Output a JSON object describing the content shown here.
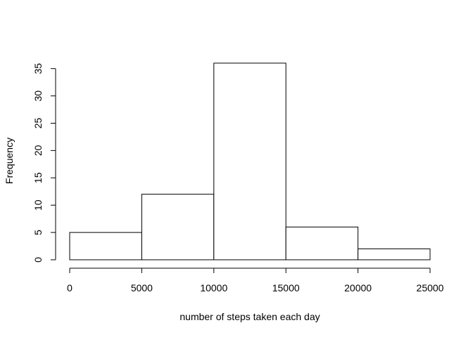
{
  "chart_data": {
    "type": "bar",
    "subtype": "histogram",
    "title": "",
    "xlabel": "number of steps taken each day",
    "ylabel": "Frequency",
    "bins": [
      {
        "from": 0,
        "to": 5000,
        "count": 5
      },
      {
        "from": 5000,
        "to": 10000,
        "count": 12
      },
      {
        "from": 10000,
        "to": 15000,
        "count": 36
      },
      {
        "from": 15000,
        "to": 20000,
        "count": 6
      },
      {
        "from": 20000,
        "to": 25000,
        "count": 2
      }
    ],
    "xlim": [
      0,
      25000
    ],
    "ylim": [
      0,
      36
    ],
    "x_ticks": [
      "0",
      "5000",
      "10000",
      "15000",
      "20000",
      "25000"
    ],
    "y_ticks": [
      "0",
      "5",
      "10",
      "15",
      "20",
      "25",
      "30",
      "35"
    ],
    "bar_fill": "#ffffff",
    "bar_stroke": "#000000",
    "grid": false,
    "legend": "none"
  }
}
